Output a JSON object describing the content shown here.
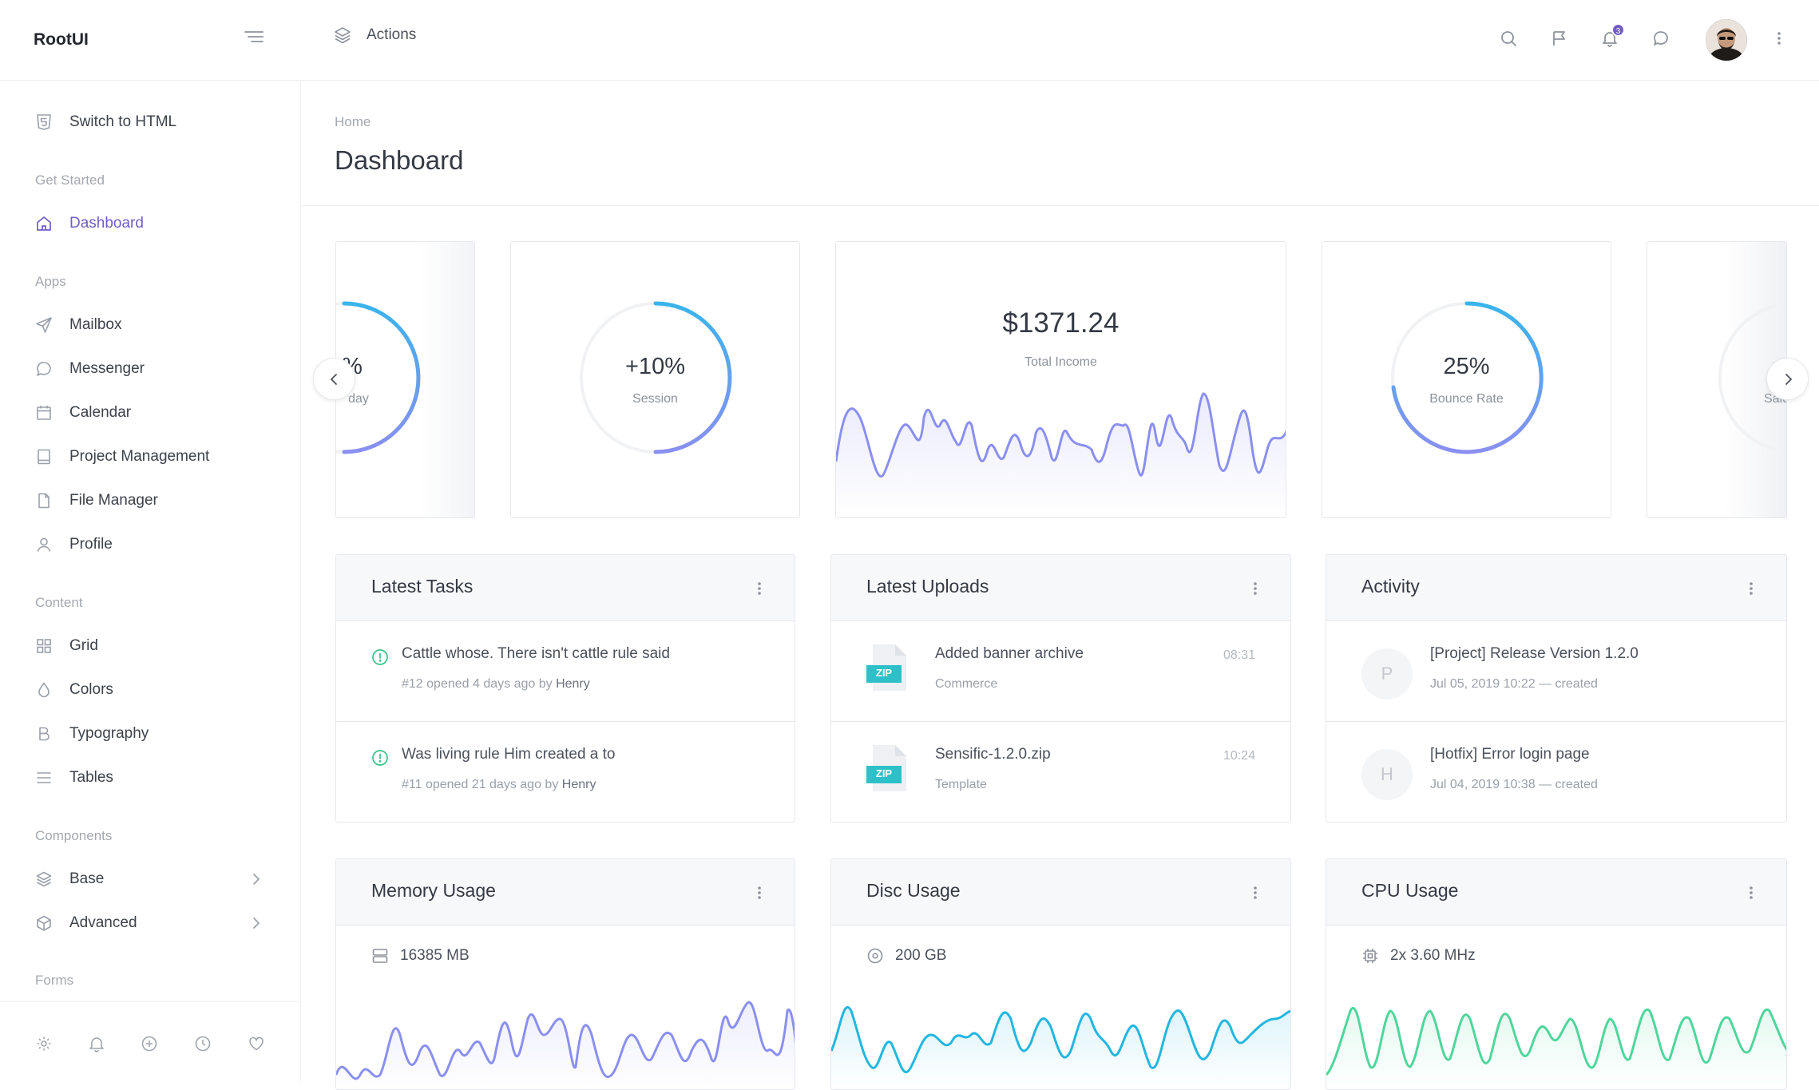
{
  "topbar": {
    "logo": "RootUI",
    "actions_label": "Actions",
    "notification_count": "3",
    "icons": [
      "menu-icon",
      "layers-icon",
      "search-icon",
      "flag-icon",
      "bell-icon",
      "chat-icon",
      "more-vertical-icon"
    ]
  },
  "sidebar": {
    "switch_label": "Switch to HTML",
    "sections": {
      "get_started": "Get Started",
      "apps": "Apps",
      "content": "Content",
      "components": "Components",
      "forms": "Forms"
    },
    "items": {
      "dashboard": "Dashboard",
      "mailbox": "Mailbox",
      "messenger": "Messenger",
      "calendar": "Calendar",
      "project_management": "Project Management",
      "file_manager": "File Manager",
      "profile": "Profile",
      "grid": "Grid",
      "colors": "Colors",
      "typography": "Typography",
      "tables": "Tables",
      "base": "Base",
      "advanced": "Advanced"
    },
    "footer_icons": [
      "settings-icon",
      "bell-icon",
      "plus-circle-icon",
      "clock-icon",
      "heart-icon"
    ]
  },
  "page": {
    "breadcrumb": "Home",
    "title": "Dashboard"
  },
  "stats": {
    "partial_left": {
      "value": "%",
      "label": "day"
    },
    "session": {
      "value": "+10%",
      "label": "Session",
      "progress": 0.5
    },
    "income": {
      "value": "$1371.24",
      "label": "Total Income"
    },
    "bounce": {
      "value": "25%",
      "label": "Bounce Rate",
      "progress": 0.72
    },
    "partial_right": {
      "value": "-",
      "label": "Sale"
    }
  },
  "tasks": {
    "title": "Latest Tasks",
    "items": [
      {
        "title": "Cattle whose. There isn't cattle rule said",
        "meta": "#12 opened 4 days ago by",
        "author": "Henry"
      },
      {
        "title": "Was living rule Him created a to",
        "meta": "#11 opened 21 days ago by",
        "author": "Henry"
      }
    ]
  },
  "uploads": {
    "title": "Latest Uploads",
    "items": [
      {
        "badge": "ZIP",
        "title": "Added banner archive",
        "meta": "Commerce",
        "time": "08:31"
      },
      {
        "badge": "ZIP",
        "title": "Sensific-1.2.0.zip",
        "meta": "Template",
        "time": "10:24"
      }
    ]
  },
  "activity": {
    "title": "Activity",
    "items": [
      {
        "letter": "P",
        "title": "[Project] Release Version 1.2.0",
        "meta": "Jul 05, 2019 10:22 — created"
      },
      {
        "letter": "H",
        "title": "[Hotfix] Error login page",
        "meta": "Jul 04, 2019 10:38 — created"
      }
    ]
  },
  "memory": {
    "title": "Memory Usage",
    "value": "16385 MB"
  },
  "disc": {
    "title": "Disc Usage",
    "value": "200 GB"
  },
  "cpu": {
    "title": "CPU Usage",
    "value": "2x 3.60 MHz"
  },
  "colors": {
    "accent": "#725ec3",
    "ring_start": "#3ab4ec",
    "ring_end": "#8a8ff0",
    "memory_line": "#8a8ff0",
    "disc_line": "#22b7e0",
    "cpu_line": "#4fd69c",
    "task_icon": "#35c48a",
    "zip_badge": "#2ec0c8"
  }
}
